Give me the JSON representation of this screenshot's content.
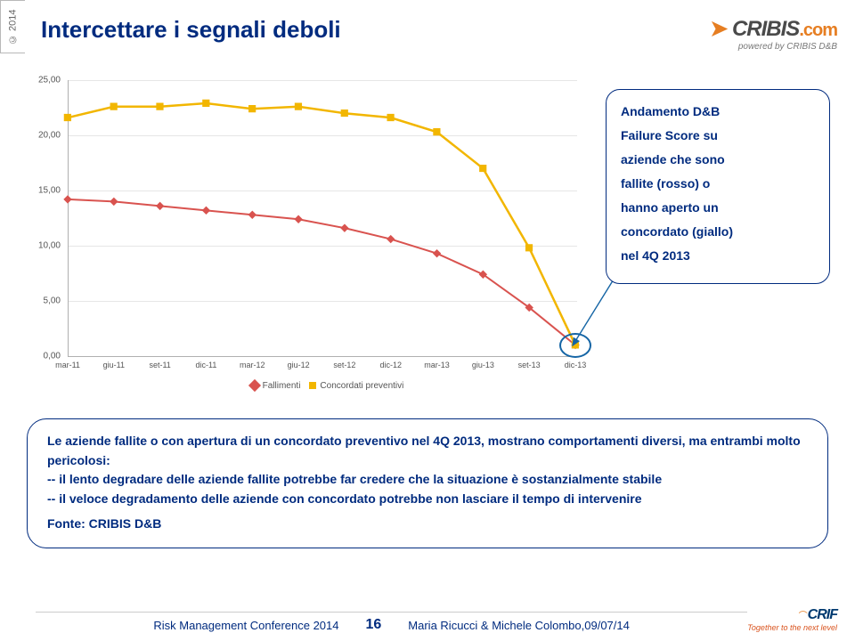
{
  "side_tab": "© 2014",
  "title": "Intercettare i segnali deboli",
  "brand": {
    "name_a": "CRIBIS",
    "name_b": ".com",
    "sub": "powered by CRIBIS D&B"
  },
  "callout": {
    "lines": [
      "Andamento D&B",
      "Failure Score su",
      "aziende che sono",
      "fallite (rosso) o",
      "hanno aperto un",
      "concordato (giallo)",
      "nel 4Q 2013"
    ]
  },
  "lower_box": {
    "p1": "Le aziende fallite o con apertura di un concordato preventivo nel 4Q 2013, mostrano comportamenti diversi, ma entrambi molto pericolosi:",
    "p2": "-- il lento degradare delle aziende fallite potrebbe far credere che la situazione è sostanzialmente stabile",
    "p3": "-- il veloce degradamento delle aziende con concordato potrebbe non lasciare il tempo di intervenire",
    "source": "Fonte: CRIBIS D&B"
  },
  "chart": {
    "type": "line",
    "background_color": "#ffffff",
    "grid_color": "#e6e6e6",
    "axis_color": "#b0b0b0",
    "label_color": "#555555",
    "label_fontsize": 10,
    "ylim": [
      0,
      25
    ],
    "ytick_step": 5,
    "yticks": [
      "0,00",
      "5,00",
      "10,00",
      "15,00",
      "20,00",
      "25,00"
    ],
    "x_categories": [
      "mar-11",
      "giu-11",
      "set-11",
      "dic-11",
      "mar-12",
      "giu-12",
      "set-12",
      "dic-12",
      "mar-13",
      "giu-13",
      "set-13",
      "dic-13"
    ],
    "series": [
      {
        "name": "Fallimenti",
        "color": "#d9534f",
        "line_width": 2,
        "marker": "diamond",
        "marker_size": 8,
        "values": [
          14.2,
          14.0,
          13.6,
          13.2,
          12.8,
          12.4,
          11.6,
          10.6,
          9.3,
          7.4,
          4.4,
          1.0
        ]
      },
      {
        "name": "Concordati preventivi",
        "color": "#f2b600",
        "line_width": 2.5,
        "marker": "square",
        "marker_size": 9,
        "values": [
          21.6,
          22.6,
          22.6,
          22.9,
          22.4,
          22.6,
          22.0,
          21.6,
          20.3,
          17.0,
          9.8,
          1.0
        ]
      }
    ],
    "legend": {
      "items": [
        "Fallimenti",
        "Concordati preventivi"
      ]
    },
    "circle_highlight": {
      "x_index": 11,
      "color": "#1565a5"
    }
  },
  "footer": {
    "left": "Risk Management Conference 2014",
    "page": "16",
    "right": "Maria Ricucci & Michele Colombo,09/07/14",
    "logo": "CRIF",
    "tagline": "Together to the next level"
  }
}
